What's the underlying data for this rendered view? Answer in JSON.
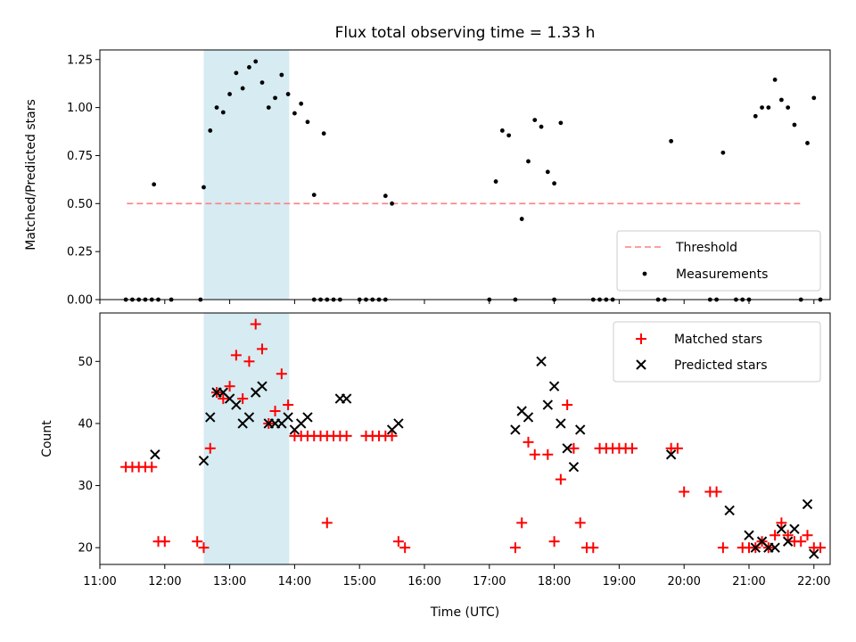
{
  "chart_data": [
    {
      "type": "scatter",
      "title": "Flux total observing time = 1.33 h",
      "xlabel": "",
      "ylabel": "Matched/Predicted stars",
      "xlim": [
        "11:00",
        "22:15"
      ],
      "ylim": [
        0,
        1.3
      ],
      "yticks": [
        "0.00",
        "0.25",
        "0.50",
        "0.75",
        "1.00",
        "1.25"
      ],
      "shaded_span": {
        "from": "12:36",
        "to": "13:55",
        "color": "#add8e6"
      },
      "legend": {
        "placement": "lower-right",
        "entries": [
          {
            "label": "Threshold",
            "style": "dashed-line",
            "color": "#ff7f7f"
          },
          {
            "label": "Measurements",
            "style": "dot",
            "color": "#000000"
          }
        ]
      },
      "threshold": {
        "name": "Threshold",
        "y": 0.5,
        "x_from": "11:25",
        "x_to": "21:50",
        "color": "#ff7f7f"
      },
      "measurements": {
        "name": "Measurements",
        "color": "#000000",
        "points": [
          [
            "11:24",
            0
          ],
          [
            "11:30",
            0
          ],
          [
            "11:36",
            0
          ],
          [
            "11:42",
            0
          ],
          [
            "11:48",
            0
          ],
          [
            "11:54",
            0
          ],
          [
            "12:06",
            0
          ],
          [
            "11:50",
            0.6
          ],
          [
            "12:33",
            0
          ],
          [
            "12:36",
            0.585
          ],
          [
            "12:42",
            0.88
          ],
          [
            "12:48",
            1.0
          ],
          [
            "12:54",
            0.975
          ],
          [
            "13:00",
            1.07
          ],
          [
            "13:06",
            1.18
          ],
          [
            "13:12",
            1.1
          ],
          [
            "13:18",
            1.21
          ],
          [
            "13:24",
            1.24
          ],
          [
            "13:30",
            1.13
          ],
          [
            "13:36",
            1.0
          ],
          [
            "13:42",
            1.05
          ],
          [
            "13:48",
            1.17
          ],
          [
            "13:54",
            1.07
          ],
          [
            "14:00",
            0.97
          ],
          [
            "14:06",
            1.02
          ],
          [
            "14:12",
            0.925
          ],
          [
            "14:18",
            0
          ],
          [
            "14:24",
            0
          ],
          [
            "14:30",
            0
          ],
          [
            "14:36",
            0
          ],
          [
            "14:18",
            0.545
          ],
          [
            "14:27",
            0.865
          ],
          [
            "14:42",
            0
          ],
          [
            "15:00",
            0
          ],
          [
            "15:06",
            0
          ],
          [
            "15:12",
            0
          ],
          [
            "15:18",
            0
          ],
          [
            "15:24",
            0
          ],
          [
            "15:24",
            0.54
          ],
          [
            "15:30",
            0.5
          ],
          [
            "17:00",
            0
          ],
          [
            "17:06",
            0.615
          ],
          [
            "17:12",
            0.88
          ],
          [
            "17:18",
            0.855
          ],
          [
            "17:24",
            0
          ],
          [
            "17:30",
            0.42
          ],
          [
            "17:36",
            0.72
          ],
          [
            "17:42",
            0.935
          ],
          [
            "17:48",
            0.9
          ],
          [
            "17:54",
            0.665
          ],
          [
            "18:00",
            0.605
          ],
          [
            "18:00",
            0
          ],
          [
            "18:06",
            0.92
          ],
          [
            "18:36",
            0
          ],
          [
            "18:42",
            0
          ],
          [
            "18:48",
            0
          ],
          [
            "18:54",
            0
          ],
          [
            "19:36",
            0
          ],
          [
            "19:42",
            0
          ],
          [
            "19:48",
            0.825
          ],
          [
            "20:24",
            0
          ],
          [
            "20:30",
            0
          ],
          [
            "20:36",
            0.765
          ],
          [
            "20:48",
            0
          ],
          [
            "20:54",
            0
          ],
          [
            "21:00",
            0
          ],
          [
            "21:06",
            0.955
          ],
          [
            "21:12",
            1.0
          ],
          [
            "21:18",
            1.0
          ],
          [
            "21:24",
            1.145
          ],
          [
            "21:30",
            1.04
          ],
          [
            "21:36",
            1.0
          ],
          [
            "21:42",
            0.91
          ],
          [
            "21:48",
            0
          ],
          [
            "21:54",
            0.815
          ],
          [
            "22:00",
            1.05
          ],
          [
            "22:06",
            0
          ]
        ]
      }
    },
    {
      "type": "scatter",
      "title": "",
      "xlabel": "Time (UTC)",
      "ylabel": "Count",
      "xlim": [
        "11:00",
        "22:15"
      ],
      "ylim": [
        17.3,
        57.8
      ],
      "xticks": [
        "11:00",
        "12:00",
        "13:00",
        "14:00",
        "15:00",
        "16:00",
        "17:00",
        "18:00",
        "19:00",
        "20:00",
        "21:00",
        "22:00"
      ],
      "yticks": [
        "20",
        "30",
        "40",
        "50"
      ],
      "shaded_span": {
        "from": "12:36",
        "to": "13:55",
        "color": "#add8e6"
      },
      "legend": {
        "placement": "upper-right",
        "entries": [
          {
            "label": "Matched stars",
            "style": "plus",
            "color": "#ff0000"
          },
          {
            "label": "Predicted stars",
            "style": "cross",
            "color": "#000000"
          }
        ]
      },
      "series": [
        {
          "name": "Matched stars",
          "marker": "plus",
          "color": "#ff0000",
          "points": [
            [
              "11:24",
              33
            ],
            [
              "11:30",
              33
            ],
            [
              "11:36",
              33
            ],
            [
              "11:42",
              33
            ],
            [
              "11:48",
              33
            ],
            [
              "11:54",
              21
            ],
            [
              "12:00",
              21
            ],
            [
              "12:30",
              21
            ],
            [
              "12:36",
              20
            ],
            [
              "12:42",
              36
            ],
            [
              "12:48",
              45
            ],
            [
              "12:54",
              44
            ],
            [
              "13:00",
              46
            ],
            [
              "13:06",
              51
            ],
            [
              "13:12",
              44
            ],
            [
              "13:18",
              50
            ],
            [
              "13:24",
              56
            ],
            [
              "13:30",
              52
            ],
            [
              "13:36",
              40
            ],
            [
              "13:42",
              42
            ],
            [
              "13:48",
              48
            ],
            [
              "13:54",
              43
            ],
            [
              "14:00",
              38
            ],
            [
              "14:06",
              38
            ],
            [
              "14:12",
              38
            ],
            [
              "14:18",
              38
            ],
            [
              "14:24",
              38
            ],
            [
              "14:30",
              38
            ],
            [
              "14:36",
              38
            ],
            [
              "14:42",
              38
            ],
            [
              "14:48",
              38
            ],
            [
              "14:30",
              24
            ],
            [
              "15:06",
              38
            ],
            [
              "15:12",
              38
            ],
            [
              "15:18",
              38
            ],
            [
              "15:24",
              38
            ],
            [
              "15:30",
              38
            ],
            [
              "15:36",
              21
            ],
            [
              "15:42",
              20
            ],
            [
              "17:24",
              20
            ],
            [
              "17:30",
              24
            ],
            [
              "17:36",
              37
            ],
            [
              "17:42",
              35
            ],
            [
              "17:54",
              35
            ],
            [
              "18:00",
              21
            ],
            [
              "18:06",
              31
            ],
            [
              "18:12",
              43
            ],
            [
              "18:18",
              36
            ],
            [
              "18:24",
              24
            ],
            [
              "18:30",
              20
            ],
            [
              "18:36",
              20
            ],
            [
              "18:42",
              36
            ],
            [
              "18:48",
              36
            ],
            [
              "18:54",
              36
            ],
            [
              "19:00",
              36
            ],
            [
              "19:06",
              36
            ],
            [
              "19:12",
              36
            ],
            [
              "19:48",
              36
            ],
            [
              "19:54",
              36
            ],
            [
              "20:00",
              29
            ],
            [
              "20:24",
              29
            ],
            [
              "20:30",
              29
            ],
            [
              "20:36",
              20
            ],
            [
              "20:54",
              20
            ],
            [
              "21:00",
              20
            ],
            [
              "21:06",
              20
            ],
            [
              "21:12",
              21
            ],
            [
              "21:18",
              20
            ],
            [
              "21:24",
              22
            ],
            [
              "21:30",
              24
            ],
            [
              "21:36",
              22
            ],
            [
              "21:42",
              21
            ],
            [
              "21:48",
              21
            ],
            [
              "21:54",
              22
            ],
            [
              "22:00",
              20
            ],
            [
              "22:06",
              20
            ]
          ]
        },
        {
          "name": "Predicted stars",
          "marker": "cross",
          "color": "#000000",
          "points": [
            [
              "11:51",
              35
            ],
            [
              "12:36",
              34
            ],
            [
              "12:42",
              41
            ],
            [
              "12:48",
              45
            ],
            [
              "12:54",
              45
            ],
            [
              "13:00",
              44
            ],
            [
              "13:06",
              43
            ],
            [
              "13:12",
              40
            ],
            [
              "13:18",
              41
            ],
            [
              "13:24",
              45
            ],
            [
              "13:30",
              46
            ],
            [
              "13:36",
              40
            ],
            [
              "13:42",
              40
            ],
            [
              "13:48",
              40
            ],
            [
              "13:54",
              41
            ],
            [
              "14:00",
              39
            ],
            [
              "14:06",
              40
            ],
            [
              "14:12",
              41
            ],
            [
              "14:42",
              44
            ],
            [
              "14:48",
              44
            ],
            [
              "15:30",
              39
            ],
            [
              "15:36",
              40
            ],
            [
              "17:24",
              39
            ],
            [
              "17:30",
              42
            ],
            [
              "17:36",
              41
            ],
            [
              "17:48",
              50
            ],
            [
              "17:54",
              43
            ],
            [
              "18:00",
              46
            ],
            [
              "18:06",
              40
            ],
            [
              "18:12",
              36
            ],
            [
              "18:18",
              33
            ],
            [
              "18:24",
              39
            ],
            [
              "19:48",
              35
            ],
            [
              "20:42",
              26
            ],
            [
              "21:00",
              22
            ],
            [
              "21:06",
              20
            ],
            [
              "21:12",
              21
            ],
            [
              "21:18",
              20
            ],
            [
              "21:24",
              20
            ],
            [
              "21:30",
              23
            ],
            [
              "21:36",
              21
            ],
            [
              "21:42",
              23
            ],
            [
              "21:54",
              27
            ],
            [
              "22:00",
              19
            ]
          ]
        }
      ]
    }
  ]
}
